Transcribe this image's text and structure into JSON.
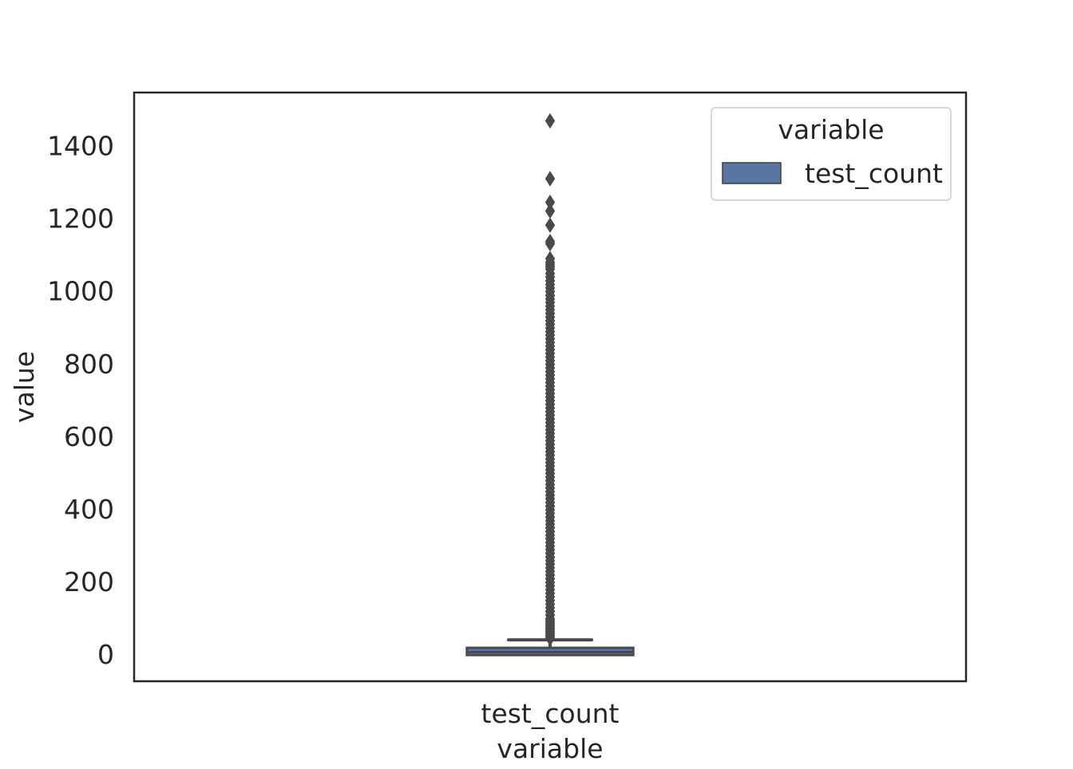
{
  "chart_data": {
    "type": "box",
    "xlabel": "variable",
    "ylabel": "value",
    "categories": [
      "test_count"
    ],
    "ylim": [
      -72,
      1548
    ],
    "yticks": [
      0,
      200,
      400,
      600,
      800,
      1000,
      1200,
      1400
    ],
    "grid": false,
    "legend": {
      "title": "variable",
      "placement": "top-right",
      "entries": [
        {
          "label": "test_count",
          "color": "#5875a4"
        }
      ]
    },
    "series": [
      {
        "category": "test_count",
        "color": "#5875a4",
        "min": 0,
        "q1": 0,
        "median": 8,
        "q3": 20,
        "whisker_low": 0,
        "whisker_high": 42,
        "outliers": [
          1470,
          1311,
          1246,
          1222,
          1183,
          1138,
          1132,
          1091,
          1081,
          1075,
          1069,
          1062,
          1050,
          1040,
          1030,
          1020,
          1010,
          1000,
          990,
          980,
          970,
          960,
          950,
          940,
          930,
          920,
          910,
          900,
          890,
          880,
          870,
          860,
          850,
          840,
          830,
          820,
          810,
          800,
          790,
          780,
          770,
          760,
          750,
          740,
          730,
          720,
          710,
          700,
          690,
          680,
          670,
          660,
          650,
          640,
          630,
          620,
          610,
          600,
          590,
          580,
          570,
          560,
          550,
          540,
          530,
          520,
          510,
          500,
          490,
          480,
          470,
          460,
          450,
          440,
          430,
          420,
          410,
          400,
          390,
          380,
          370,
          360,
          350,
          340,
          330,
          320,
          310,
          300,
          290,
          280,
          270,
          260,
          250,
          240,
          230,
          220,
          210,
          200,
          190,
          180,
          170,
          160,
          150,
          140,
          130,
          120,
          110,
          100,
          95,
          90,
          85,
          80,
          75,
          70,
          65,
          60,
          55,
          50,
          46
        ]
      }
    ],
    "colors": {
      "box": "#5875a4",
      "line": "#4a4a4a",
      "axis": "#262626"
    }
  }
}
